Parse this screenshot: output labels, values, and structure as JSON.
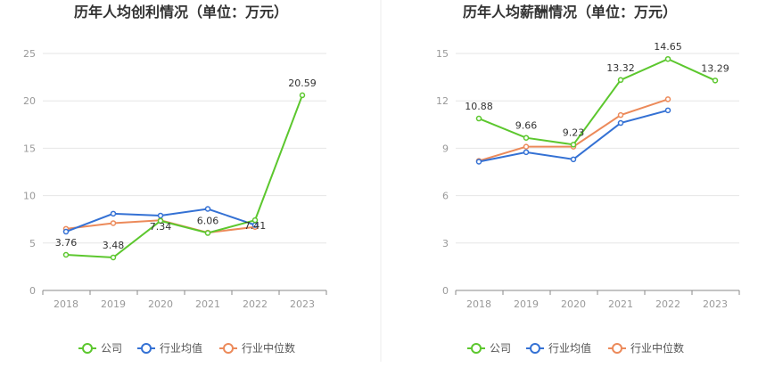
{
  "chart_data": [
    {
      "type": "line",
      "title": "历年人均创利情况（单位：万元）",
      "categories": [
        "2018",
        "2019",
        "2020",
        "2021",
        "2022",
        "2023"
      ],
      "ylim": [
        0,
        25
      ],
      "yticks": [
        0,
        5,
        10,
        15,
        20,
        25
      ],
      "series": [
        {
          "name": "公司",
          "color": "#5cc72e",
          "values": [
            3.76,
            3.48,
            7.34,
            6.06,
            7.41,
            20.59
          ]
        },
        {
          "name": "行业均值",
          "color": "#3471d4",
          "values": [
            6.2,
            8.1,
            7.9,
            8.6,
            6.9,
            null
          ]
        },
        {
          "name": "行业中位数",
          "color": "#ec8a5a",
          "values": [
            6.5,
            7.1,
            7.4,
            6.1,
            6.7,
            null
          ]
        }
      ],
      "data_labels": [
        "3.76",
        "3.48",
        "7.34",
        "6.06",
        "7.41",
        "20.59"
      ]
    },
    {
      "type": "line",
      "title": "历年人均薪酬情况（单位：万元）",
      "categories": [
        "2018",
        "2019",
        "2020",
        "2021",
        "2022",
        "2023"
      ],
      "ylim": [
        0,
        15
      ],
      "yticks": [
        0,
        3,
        6,
        9,
        12,
        15
      ],
      "series": [
        {
          "name": "公司",
          "color": "#5cc72e",
          "values": [
            10.88,
            9.66,
            9.23,
            13.32,
            14.65,
            13.29
          ]
        },
        {
          "name": "行业均值",
          "color": "#3471d4",
          "values": [
            8.15,
            8.75,
            8.3,
            10.6,
            11.4,
            null
          ]
        },
        {
          "name": "行业中位数",
          "color": "#ec8a5a",
          "values": [
            8.2,
            9.1,
            9.1,
            11.1,
            12.1,
            null
          ]
        }
      ],
      "data_labels": [
        "10.88",
        "9.66",
        "9.23",
        "13.32",
        "14.65",
        "13.29"
      ]
    }
  ],
  "legend": [
    "公司",
    "行业均值",
    "行业中位数"
  ]
}
